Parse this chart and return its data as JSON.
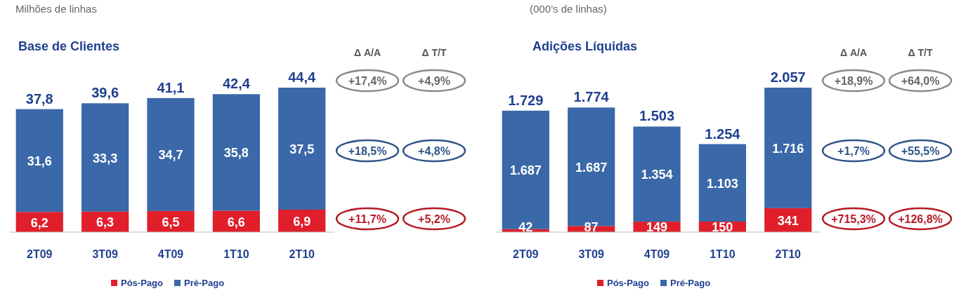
{
  "chart_data": [
    {
      "type": "bar",
      "stacked": true,
      "subtitle": "Milhões de linhas",
      "title": "Base de Clientes",
      "categories": [
        "2T09",
        "3T09",
        "4T09",
        "1T10",
        "2T10"
      ],
      "series": [
        {
          "name": "Pós-Pago",
          "color": "#e01f2b",
          "values": [
            6.2,
            6.3,
            6.5,
            6.6,
            6.9
          ],
          "value_labels": [
            "6,2",
            "6,3",
            "6,5",
            "6,6",
            "6,9"
          ]
        },
        {
          "name": "Pré-Pago",
          "color": "#3a68a8",
          "values": [
            31.6,
            33.3,
            34.7,
            35.8,
            37.5
          ],
          "value_labels": [
            "31,6",
            "33,3",
            "34,7",
            "35,8",
            "37,5"
          ]
        }
      ],
      "totals": [
        "37,8",
        "39,6",
        "41,1",
        "42,4",
        "44,4"
      ],
      "annotations": [
        "Δ A/A",
        "Δ T/T",
        "+17,4%",
        "+4,9%",
        "+18,5%",
        "+4,8%",
        "+11,7%",
        "+5,2%"
      ],
      "legend": "bottom"
    },
    {
      "type": "bar",
      "stacked": true,
      "subtitle": "(000’s de linhas)",
      "title": "Adições Líquidas",
      "categories": [
        "2T09",
        "3T09",
        "4T09",
        "1T10",
        "2T10"
      ],
      "series": [
        {
          "name": "Pós-Pago",
          "color": "#e01f2b",
          "values": [
            42,
            87,
            149,
            150,
            341
          ],
          "value_labels": [
            "42",
            "87",
            "149",
            "150",
            "341"
          ]
        },
        {
          "name": "Pré-Pago",
          "color": "#3a68a8",
          "values": [
            1687,
            1687,
            1354,
            1103,
            1716
          ],
          "value_labels": [
            "1.687",
            "1.687",
            "1.354",
            "1.103",
            "1.716"
          ]
        }
      ],
      "totals": [
        "1.729",
        "1.774",
        "1.503",
        "1.254",
        "2.057"
      ],
      "annotations": [
        "Δ A/A",
        "Δ T/T",
        "+18,9%",
        "+64,0%",
        "+1,7%",
        "+55,5%",
        "+715,3%",
        "+126,8%"
      ],
      "legend": "bottom"
    }
  ]
}
